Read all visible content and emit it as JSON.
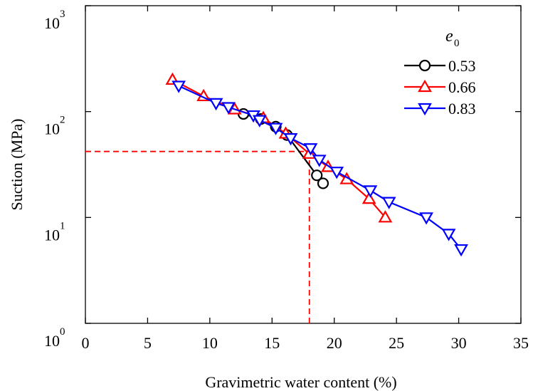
{
  "chart_data": {
    "type": "line",
    "xlabel": "Gravimetric water content (%)",
    "ylabel": "Suction (MPa)",
    "xlim": [
      0,
      35
    ],
    "ylim": [
      1,
      1000
    ],
    "y_scale": "log",
    "x_ticks": [
      0,
      5,
      10,
      15,
      20,
      25,
      30,
      35
    ],
    "x_tick_labels": [
      "0",
      "5",
      "10",
      "15",
      "20",
      "25",
      "30",
      "35"
    ],
    "y_ticks": [
      {
        "value": 1,
        "base": "10",
        "exp": "0"
      },
      {
        "value": 10,
        "base": "10",
        "exp": "1"
      },
      {
        "value": 100,
        "base": "10",
        "exp": "2"
      },
      {
        "value": 1000,
        "base": "10",
        "exp": "3"
      }
    ],
    "grid": false,
    "legend": {
      "title_main": "e",
      "title_sub": "0",
      "placement": "top-right"
    },
    "series": [
      {
        "name": "0.53",
        "color": "#000000",
        "marker": "circle",
        "x": [
          12.7,
          14.1,
          15.3,
          16.2,
          18.6,
          19.1
        ],
        "y": [
          95,
          85,
          72,
          60,
          25,
          21
        ]
      },
      {
        "name": "0.66",
        "color": "#ff0000",
        "marker": "triangle-up",
        "x": [
          7.0,
          9.5,
          12.0,
          14.3,
          16.1,
          18.0,
          19.5,
          21.0,
          22.8,
          24.1
        ],
        "y": [
          200,
          140,
          105,
          87,
          62,
          40,
          30,
          23,
          15,
          10
        ]
      },
      {
        "name": "0.83",
        "color": "#0000ff",
        "marker": "triangle-down",
        "x": [
          7.5,
          10.5,
          11.5,
          13.5,
          14.0,
          15.3,
          16.5,
          18.1,
          18.8,
          20.2,
          22.9,
          24.4,
          27.4,
          29.2,
          30.2
        ],
        "y": [
          175,
          120,
          110,
          92,
          83,
          70,
          56,
          45,
          35,
          27,
          18,
          14,
          10,
          7,
          5
        ]
      }
    ],
    "annotations": [
      {
        "type": "dashed-line",
        "color": "#ff0000",
        "from": [
          0,
          42
        ],
        "to": [
          18.0,
          42
        ]
      },
      {
        "type": "dashed-line",
        "color": "#ff0000",
        "from": [
          18.0,
          1
        ],
        "to": [
          18.0,
          42
        ]
      }
    ]
  }
}
